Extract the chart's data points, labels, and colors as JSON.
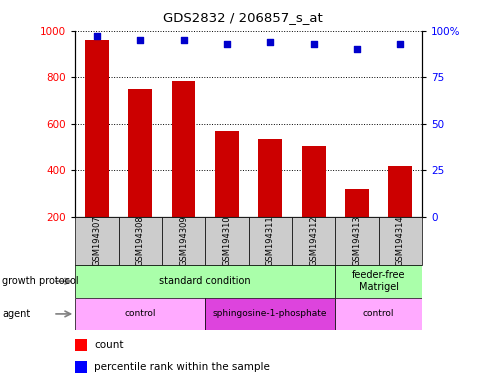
{
  "title": "GDS2832 / 206857_s_at",
  "samples": [
    "GSM194307",
    "GSM194308",
    "GSM194309",
    "GSM194310",
    "GSM194311",
    "GSM194312",
    "GSM194313",
    "GSM194314"
  ],
  "counts": [
    960,
    750,
    785,
    570,
    535,
    505,
    320,
    420
  ],
  "percentile_ranks": [
    97,
    95,
    95,
    93,
    94,
    93,
    90,
    93
  ],
  "ylim_left": [
    200,
    1000
  ],
  "ylim_right": [
    0,
    100
  ],
  "yticks_left": [
    200,
    400,
    600,
    800,
    1000
  ],
  "yticks_right": [
    0,
    25,
    50,
    75,
    100
  ],
  "bar_color": "#cc0000",
  "dot_color": "#0000cc",
  "bar_bottom": 200,
  "growth_protocol_groups": [
    {
      "label": "standard condition",
      "start": 0,
      "end": 6,
      "color": "#aaffaa"
    },
    {
      "label": "feeder-free\nMatrigel",
      "start": 6,
      "end": 8,
      "color": "#aaffaa"
    }
  ],
  "agent_groups": [
    {
      "label": "control",
      "start": 0,
      "end": 3,
      "color": "#ffaaff"
    },
    {
      "label": "sphingosine-1-phosphate",
      "start": 3,
      "end": 6,
      "color": "#dd44dd"
    },
    {
      "label": "control",
      "start": 6,
      "end": 8,
      "color": "#ffaaff"
    }
  ],
  "sample_label_area_color": "#cccccc",
  "right_ytick_labels": [
    "0",
    "25",
    "50",
    "75",
    "100%"
  ]
}
